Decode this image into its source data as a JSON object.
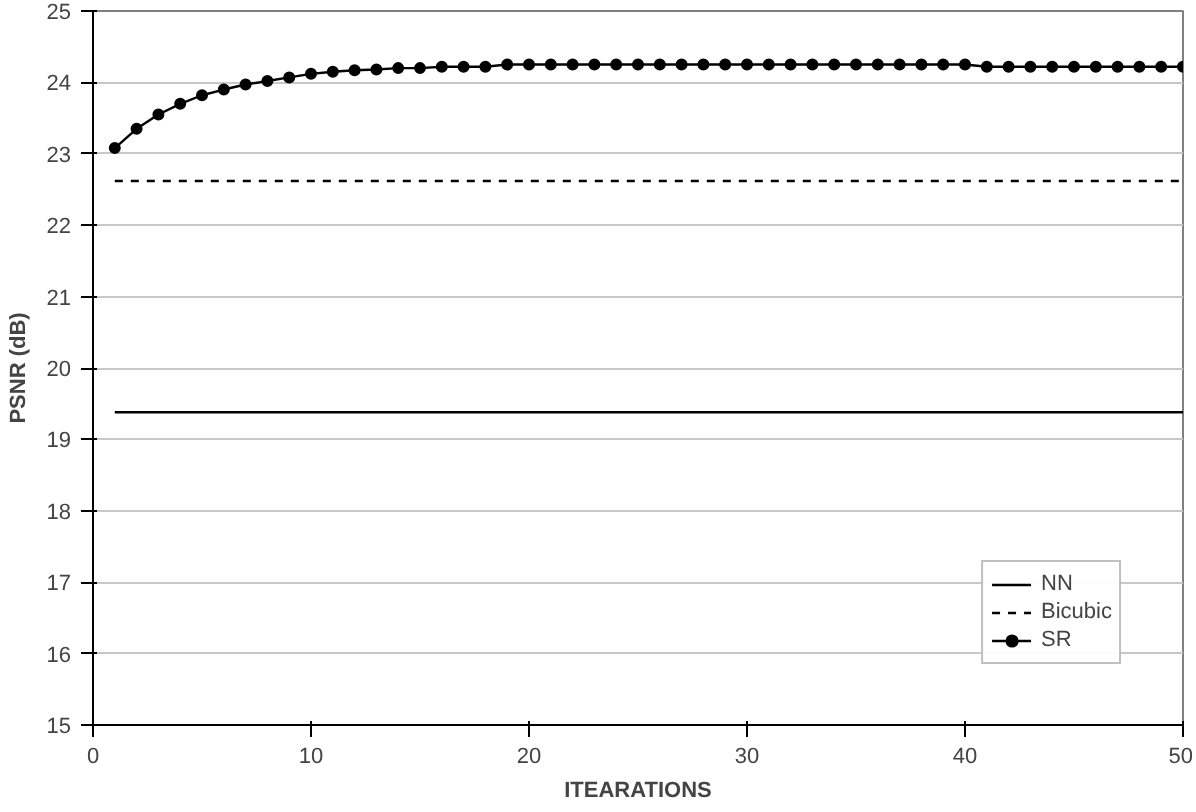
{
  "chart_data": {
    "type": "line",
    "xlabel": "ITEARATIONS",
    "ylabel": "PSNR (dB)",
    "xlim": [
      0,
      50
    ],
    "xticks": [
      0,
      10,
      20,
      30,
      40,
      50
    ],
    "ylim": [
      15,
      25
    ],
    "yticks": [
      15,
      16,
      17,
      18,
      19,
      20,
      21,
      22,
      23,
      24,
      25
    ],
    "grid": "y",
    "legend": "bottom right",
    "series": [
      {
        "name": "NN",
        "color": "#000000",
        "x": [
          1,
          50
        ],
        "values": [
          19.38,
          19.38
        ],
        "line_style": "solid",
        "marker": "none"
      },
      {
        "name": "Bicubic",
        "color": "#000000",
        "x": [
          1,
          50
        ],
        "values": [
          22.62,
          22.62
        ],
        "line_style": "dotted",
        "marker": "none"
      },
      {
        "name": "SR",
        "color": "#000000",
        "x": [
          1,
          2,
          3,
          4,
          5,
          6,
          7,
          8,
          9,
          10,
          11,
          12,
          13,
          14,
          15,
          16,
          17,
          18,
          19,
          20,
          21,
          22,
          23,
          24,
          25,
          26,
          27,
          28,
          29,
          30,
          31,
          32,
          33,
          34,
          35,
          36,
          37,
          38,
          39,
          40,
          41,
          42,
          43,
          44,
          45,
          46,
          47,
          48,
          49,
          50
        ],
        "values": [
          23.08,
          23.35,
          23.55,
          23.7,
          23.82,
          23.9,
          23.97,
          24.02,
          24.07,
          24.12,
          24.15,
          24.17,
          24.18,
          24.2,
          24.2,
          24.22,
          24.22,
          24.22,
          24.25,
          24.25,
          24.25,
          24.25,
          24.25,
          24.25,
          24.25,
          24.25,
          24.25,
          24.25,
          24.25,
          24.25,
          24.25,
          24.25,
          24.25,
          24.25,
          24.25,
          24.25,
          24.25,
          24.25,
          24.25,
          24.25,
          24.22,
          24.22,
          24.22,
          24.22,
          24.22,
          24.22,
          24.22,
          24.22,
          24.22,
          24.22
        ],
        "line_style": "solid",
        "marker": "circle"
      }
    ]
  }
}
